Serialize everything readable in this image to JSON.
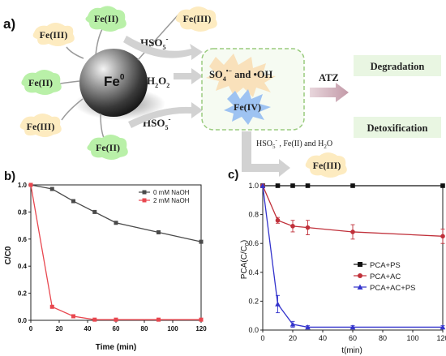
{
  "panel_a": {
    "label": "a)",
    "core": "Fe",
    "core_sup": "0",
    "ion_labels": [
      "Fe(II)",
      "Fe(III)",
      "Fe(III)",
      "Fe(II)",
      "Fe(III)",
      "Fe(II)"
    ],
    "top_right_ion": "Fe(III)",
    "oxidants": [
      "HSO",
      "H",
      "HSO"
    ],
    "oxidant_sup": "-",
    "oxidant_sub": "5",
    "h2o2_sub": "2",
    "h2o2_o": "O",
    "radicals": {
      "so4": "SO",
      "so4_sub": "4",
      "so4_sup": "•−",
      "and": " and ",
      "oh": "•OH"
    },
    "fe4": "Fe(IV)",
    "atz": "ATZ",
    "degradation": "Degradation",
    "detoxification": "Detoxification",
    "byproduct_line": "HSO",
    "byproduct_rest": " , Fe(II)  and H",
    "byproduct_end": "O",
    "byproduct_ion": "Fe(III)",
    "colors": {
      "green_blob": "#b9f0a8",
      "yellow_blob": "#fdebc0",
      "box_border": "#9acb7f",
      "arrow": "#c9a9b4",
      "gray_arrow": "#d2d2d2"
    }
  },
  "chart_data": [
    {
      "panel": "b)",
      "type": "line",
      "xlabel": "Time (min)",
      "ylabel": "C/C0",
      "xlim": [
        0,
        120
      ],
      "ylim": [
        0,
        1.0
      ],
      "xticks": [
        "0",
        "20",
        "40",
        "60",
        "80",
        "100",
        "120"
      ],
      "yticks": [
        "0.0",
        "0.2",
        "0.4",
        "0.6",
        "0.8",
        "1.0"
      ],
      "legend_position": "top-right",
      "series": [
        {
          "name": "0 mM NaOH",
          "color": "#4a4a4a",
          "marker": "square",
          "x": [
            0,
            15,
            30,
            45,
            60,
            90,
            120
          ],
          "y": [
            1.0,
            0.97,
            0.88,
            0.8,
            0.72,
            0.65,
            0.58
          ]
        },
        {
          "name": "2 mM NaOH",
          "color": "#e8474f",
          "marker": "square",
          "x": [
            0,
            15,
            30,
            45,
            60,
            90,
            120
          ],
          "y": [
            1.0,
            0.1,
            0.03,
            0.005,
            0.005,
            0.005,
            0.005
          ]
        }
      ]
    },
    {
      "panel": "c)",
      "type": "line",
      "xlabel": "t(min)",
      "ylabel": "PCA(C/C",
      "ylabel_sub": "0",
      "ylabel_end": ")",
      "xlim": [
        0,
        120
      ],
      "ylim": [
        0,
        1.0
      ],
      "xticks": [
        "0",
        "20",
        "40",
        "60",
        "80",
        "100",
        "120"
      ],
      "yticks": [
        "0.0",
        "0.2",
        "0.4",
        "0.6",
        "0.8",
        "1.0"
      ],
      "legend_position": "center-right",
      "series": [
        {
          "name": "PCA+PS",
          "color": "#111111",
          "marker": "square",
          "x": [
            0,
            10,
            20,
            30,
            60,
            120
          ],
          "y": [
            1.0,
            1.0,
            1.0,
            1.0,
            1.0,
            1.0
          ],
          "err": [
            0,
            0.01,
            0.01,
            0.01,
            0.01,
            0.01
          ]
        },
        {
          "name": "PCA+AC",
          "color": "#c0303a",
          "marker": "circle",
          "x": [
            0,
            10,
            20,
            30,
            60,
            120
          ],
          "y": [
            1.0,
            0.76,
            0.72,
            0.71,
            0.68,
            0.65
          ],
          "err": [
            0,
            0.02,
            0.04,
            0.05,
            0.05,
            0.05
          ]
        },
        {
          "name": "PCA+AC+PS",
          "color": "#3333cc",
          "marker": "triangle",
          "x": [
            0,
            10,
            20,
            30,
            60,
            120
          ],
          "y": [
            1.0,
            0.18,
            0.04,
            0.02,
            0.02,
            0.02
          ],
          "err": [
            0,
            0.06,
            0.02,
            0.01,
            0.01,
            0.01
          ]
        }
      ]
    }
  ]
}
